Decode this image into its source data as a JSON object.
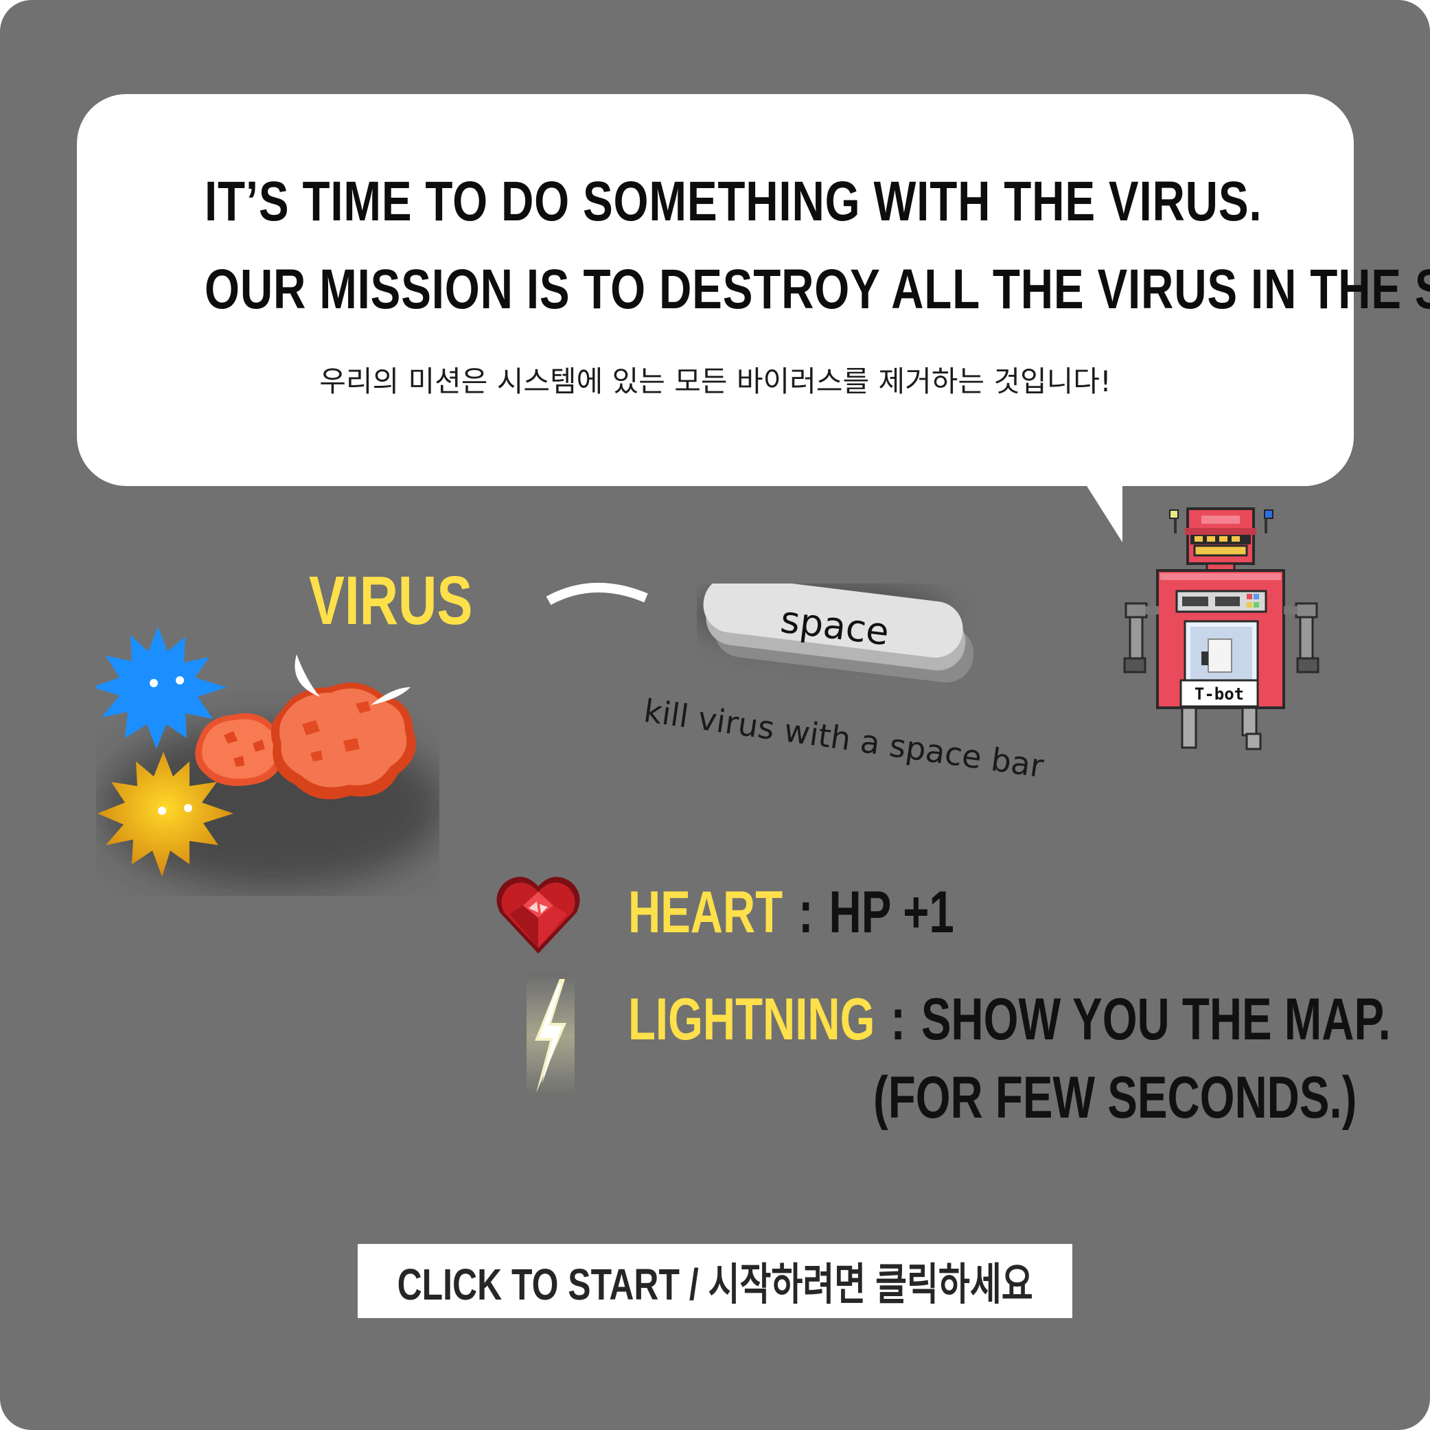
{
  "intro": {
    "headline_line1": "IT’S TIME TO DO SOMETHING WITH THE VIRUS.",
    "headline_line2": "OUR MISSION IS TO DESTROY ALL THE VIRUS IN THE SYSTEM!",
    "subtitle_ko": "우리의 미션은 시스템에 있는 모든 바이러스를 제거하는 것입니다!"
  },
  "controls": {
    "virus_label": "VIRUS",
    "key_label": "space",
    "caption": "kill virus with a space bar"
  },
  "robot": {
    "name_tag": "T-bot"
  },
  "items": [
    {
      "name": "HEART",
      "separator": ":",
      "description": "HP +1",
      "icon": "heart-gem-icon"
    },
    {
      "name": "LIGHTNING",
      "separator": ":",
      "description": "SHOW YOU THE MAP.",
      "description_line2": "(FOR FEW SECONDS.)",
      "icon": "lightning-bolt-icon"
    }
  ],
  "start_button": {
    "label": "CLICK TO START / 시작하려면 클릭하세요"
  },
  "colors": {
    "background": "#717171",
    "accent_yellow": "#fde04a",
    "bubble": "#ffffff",
    "robot_red": "#e94b5b"
  }
}
